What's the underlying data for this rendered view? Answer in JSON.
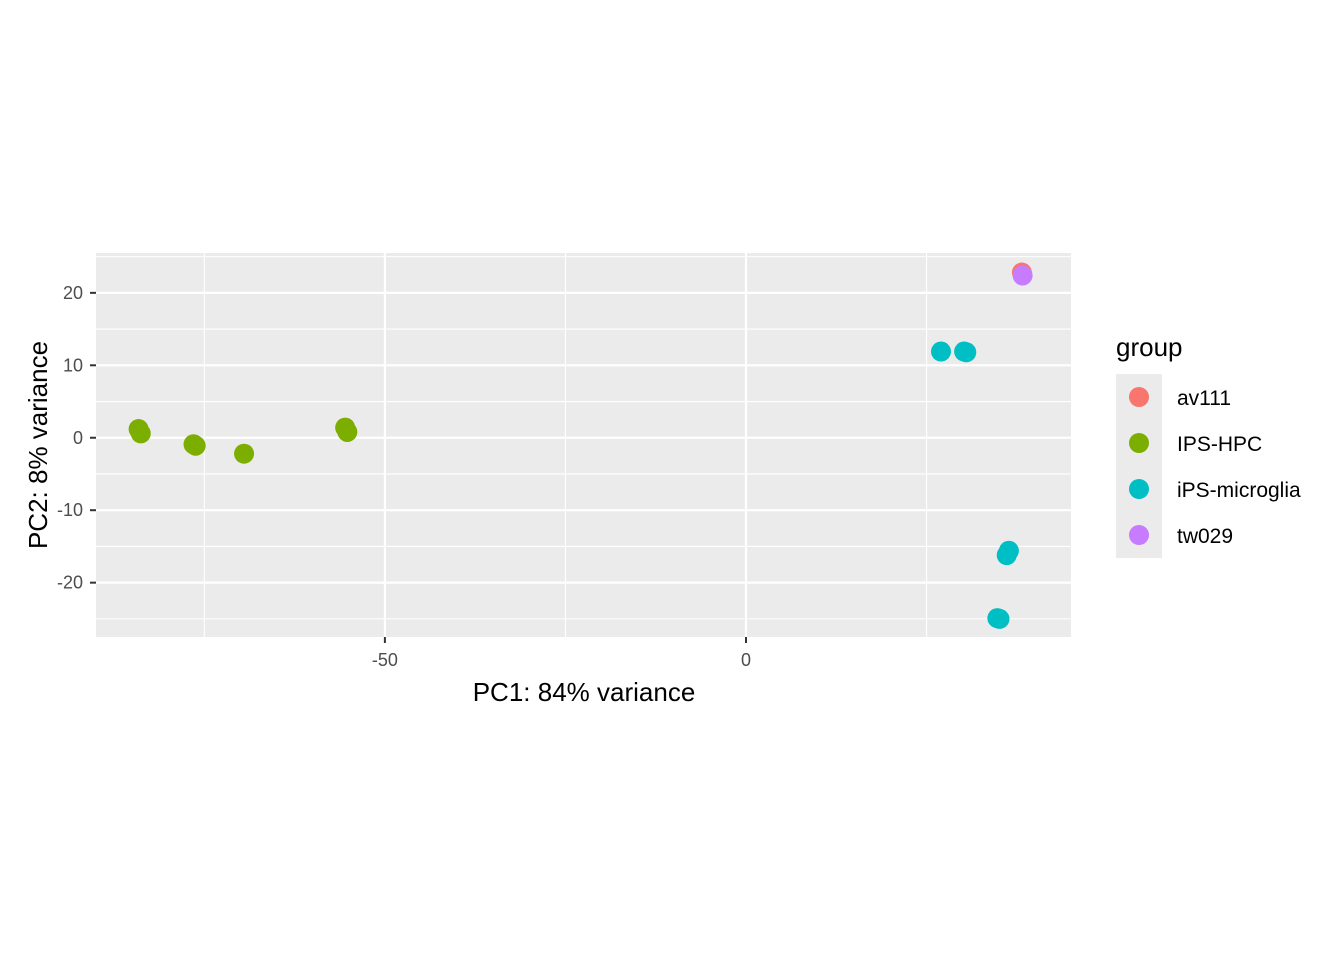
{
  "chart_data": {
    "type": "scatter",
    "xlabel": "PC1: 84% variance",
    "ylabel": "PC2: 8% variance",
    "xlim": [
      -90,
      45
    ],
    "ylim": [
      -27.5,
      25.5
    ],
    "x_ticks": [
      -50,
      0
    ],
    "x_tick_labels": [
      "-50",
      "0"
    ],
    "y_ticks": [
      20,
      10,
      0,
      -10,
      -20
    ],
    "y_tick_labels": [
      "20",
      "10",
      "0",
      "-10",
      "-20"
    ],
    "grid": true,
    "legend": {
      "title": "group",
      "position": "right"
    },
    "series": [
      {
        "name": "av111",
        "color": "#F8766D",
        "points": [
          [
            38.2,
            22.8
          ]
        ]
      },
      {
        "name": "IPS-HPC",
        "color": "#7CAE00",
        "points": [
          [
            -84.1,
            1.2
          ],
          [
            -83.8,
            0.6
          ],
          [
            -76.5,
            -0.9
          ],
          [
            -76.2,
            -1.1
          ],
          [
            -69.5,
            -2.2
          ],
          [
            -55.5,
            1.4
          ],
          [
            -55.2,
            0.8
          ]
        ]
      },
      {
        "name": "iPS-microglia",
        "color": "#00BFC4",
        "points": [
          [
            27.0,
            11.9
          ],
          [
            30.2,
            11.9
          ],
          [
            30.5,
            11.8
          ],
          [
            36.4,
            -15.6
          ],
          [
            36.1,
            -16.2
          ],
          [
            34.8,
            -24.9
          ],
          [
            35.1,
            -25.0
          ]
        ]
      },
      {
        "name": "tw029",
        "color": "#C77CFF",
        "points": [
          [
            38.3,
            22.4
          ]
        ]
      }
    ]
  }
}
